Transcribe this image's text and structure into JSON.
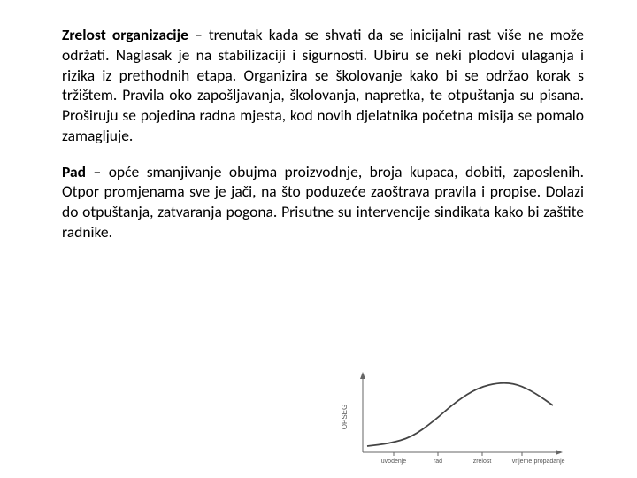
{
  "paragraphs": {
    "p1": {
      "bold": "Zrelost organizacije",
      "rest": " – trenutak kada se shvati da se inicijalni rast više ne može održati. Naglasak je na stabilizaciji i sigurnosti. Ubiru se neki plodovi ulaganja i rizika iz prethodnih etapa.\nOrganizira se školovanje kako bi se održao korak s tržištem. Pravila oko zapošljavanja, školovanja, napretka, te otpuštanja su pisana. Proširuju se pojedina radna mjesta, kod novih djelatnika početna misija se pomalo zamagljuje."
    },
    "p2": {
      "bold": "Pad",
      "rest": " – opće smanjivanje obujma proizvodnje, broja kupaca, dobiti, zaposlenih. Otpor promjenama sve je jači, na što poduzeće zaoštrava pravila i propise. Dolazi do otpuštanja, zatvaranja pogona. Prisutne su intervencije sindikata kako bi zaštite radnike."
    }
  },
  "chart": {
    "type": "line",
    "y_axis_label": "OPSEG",
    "x_ticks": [
      "uvođenje",
      "rad",
      "zrelost",
      "vrijeme",
      "propadanje"
    ],
    "curve_points": [
      {
        "x": 35,
        "y": 88
      },
      {
        "x": 60,
        "y": 85
      },
      {
        "x": 85,
        "y": 78
      },
      {
        "x": 110,
        "y": 60
      },
      {
        "x": 135,
        "y": 38
      },
      {
        "x": 160,
        "y": 22
      },
      {
        "x": 185,
        "y": 16
      },
      {
        "x": 205,
        "y": 18
      },
      {
        "x": 225,
        "y": 28
      },
      {
        "x": 245,
        "y": 42
      }
    ],
    "axis_color": "#666666",
    "curve_color": "#444444",
    "curve_width": 1.8,
    "background": "#ffffff",
    "xlim": [
      30,
      250
    ],
    "ylim": [
      10,
      95
    ]
  }
}
